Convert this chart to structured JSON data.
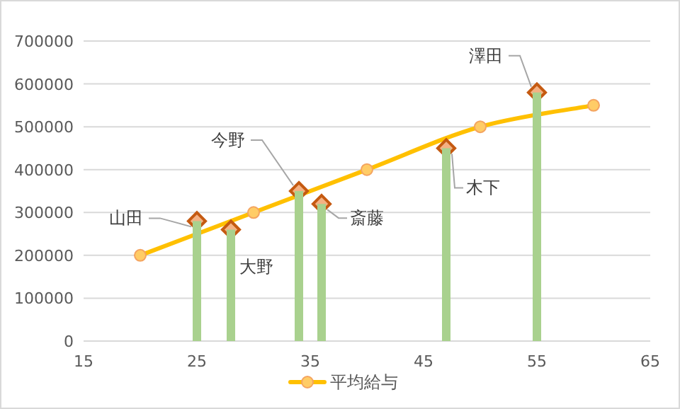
{
  "chart_data": {
    "type": "scatter",
    "xlim": [
      15,
      65
    ],
    "xticks": [
      15,
      25,
      35,
      45,
      55,
      65
    ],
    "ylim": [
      0,
      700000
    ],
    "yticks": [
      0,
      100000,
      200000,
      300000,
      400000,
      500000,
      600000,
      700000
    ],
    "grid": "y",
    "legend": "bottom",
    "series": [
      {
        "type": "line",
        "name": "平均給与",
        "color": "#ffc000",
        "marker": "circle",
        "x": [
          20,
          30,
          40,
          50,
          60
        ],
        "values": [
          200000,
          300000,
          400000,
          500000,
          550000
        ]
      },
      {
        "color": "#c55a11",
        "marker": "diamond",
        "x": [
          25,
          28,
          34,
          36,
          47,
          55
        ],
        "values": [
          280000,
          260000,
          350000,
          320000,
          450000,
          580000
        ]
      },
      {
        "type": "bar",
        "color": "#a9d18e",
        "x": [
          25,
          28,
          34,
          36,
          47,
          55
        ],
        "values": [
          280000,
          260000,
          350000,
          320000,
          450000,
          580000
        ]
      }
    ],
    "annotations": [
      {
        "text": "山田",
        "x": 25,
        "y": 280000
      },
      {
        "text": "大野",
        "x": 28,
        "y": 260000
      },
      {
        "text": "今野",
        "x": 34,
        "y": 350000
      },
      {
        "text": "斎藤",
        "x": 36,
        "y": 320000
      },
      {
        "text": "木下",
        "x": 47,
        "y": 450000
      },
      {
        "text": "澤田",
        "x": 55,
        "y": 580000
      }
    ]
  }
}
